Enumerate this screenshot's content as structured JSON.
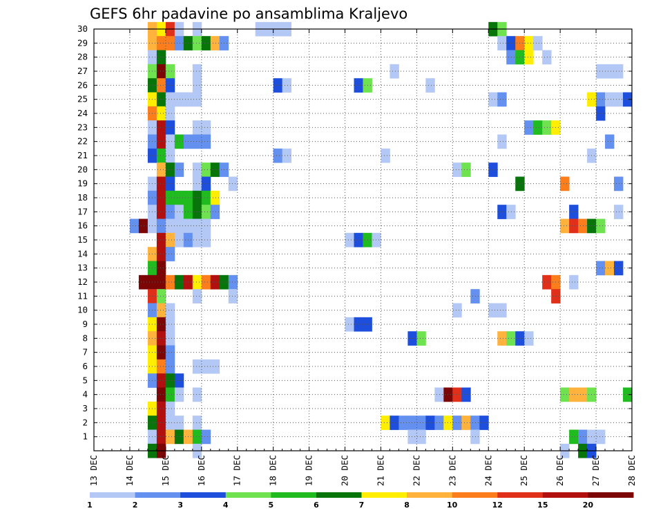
{
  "chart_data": {
    "type": "heatmap",
    "title": "GEFS 6hr padavine po ansamblima Kraljevo",
    "xlabel": "",
    "ylabel": "",
    "x_tick_labels": [
      "13 DEC",
      "14 DEC",
      "15 DEC",
      "16 DEC",
      "17 DEC",
      "18 DEC",
      "19 DEC",
      "20 DEC",
      "21 DEC",
      "22 DEC",
      "23 DEC",
      "24 DEC",
      "25 DEC",
      "26 DEC",
      "27 DEC",
      "28 DEC"
    ],
    "y_tick_labels": [
      "1",
      "2",
      "3",
      "4",
      "5",
      "6",
      "7",
      "8",
      "9",
      "10",
      "11",
      "12",
      "13",
      "14",
      "15",
      "16",
      "17",
      "18",
      "19",
      "20",
      "21",
      "22",
      "23",
      "24",
      "25",
      "26",
      "27",
      "28",
      "29",
      "30"
    ],
    "xlim_days": [
      13,
      28
    ],
    "ylim_members": [
      0,
      30
    ],
    "time_step_hours": 6,
    "grid": "dotted",
    "legend": {
      "placement": "bottom",
      "labels": [
        "1",
        "2",
        "3",
        "4",
        "5",
        "6",
        "7",
        "8",
        "10",
        "12",
        "15",
        "20"
      ],
      "colors": [
        "#b4c8f5",
        "#6491ef",
        "#1e4fdc",
        "#6ee34f",
        "#1fbb1f",
        "#08750a",
        "#ffee00",
        "#ffb23c",
        "#fb7d1c",
        "#e1301a",
        "#b20f0f",
        "#7c0606"
      ]
    },
    "cells": [
      [
        30,
        14.75,
        7
      ],
      [
        30,
        14.5,
        8
      ],
      [
        30,
        15.0,
        10
      ],
      [
        30,
        15.25,
        1
      ],
      [
        30,
        15.75,
        1
      ],
      [
        30,
        17.5,
        1
      ],
      [
        30,
        17.75,
        1
      ],
      [
        30,
        18.0,
        1
      ],
      [
        30,
        18.25,
        1
      ],
      [
        30,
        24.0,
        6
      ],
      [
        30,
        24.25,
        4
      ],
      [
        29,
        14.5,
        8
      ],
      [
        29,
        14.75,
        9
      ],
      [
        29,
        15.0,
        9
      ],
      [
        29,
        15.25,
        2
      ],
      [
        29,
        15.5,
        6
      ],
      [
        29,
        15.75,
        4
      ],
      [
        29,
        16.0,
        6
      ],
      [
        29,
        16.25,
        8
      ],
      [
        29,
        16.5,
        2
      ],
      [
        29,
        24.25,
        1
      ],
      [
        29,
        24.5,
        3
      ],
      [
        29,
        24.75,
        9
      ],
      [
        29,
        25.0,
        7
      ],
      [
        29,
        25.25,
        1
      ],
      [
        28,
        14.5,
        1
      ],
      [
        28,
        14.75,
        6
      ],
      [
        28,
        24.5,
        2
      ],
      [
        28,
        24.75,
        5
      ],
      [
        28,
        25.0,
        7
      ],
      [
        28,
        25.5,
        1
      ],
      [
        27,
        14.5,
        4
      ],
      [
        27,
        14.75,
        12
      ],
      [
        27,
        15.0,
        4
      ],
      [
        27,
        15.75,
        1
      ],
      [
        27,
        21.25,
        1
      ],
      [
        27,
        27.0,
        1
      ],
      [
        27,
        27.25,
        1
      ],
      [
        27,
        27.5,
        1
      ],
      [
        26,
        14.5,
        6
      ],
      [
        26,
        14.75,
        9
      ],
      [
        26,
        15.0,
        3
      ],
      [
        26,
        15.75,
        1
      ],
      [
        26,
        18.0,
        3
      ],
      [
        26,
        18.25,
        1
      ],
      [
        26,
        20.25,
        3
      ],
      [
        26,
        20.5,
        4
      ],
      [
        26,
        22.25,
        1
      ],
      [
        25,
        14.5,
        7
      ],
      [
        25,
        14.75,
        6
      ],
      [
        25,
        15.0,
        1
      ],
      [
        25,
        15.25,
        1
      ],
      [
        25,
        15.5,
        1
      ],
      [
        25,
        15.75,
        1
      ],
      [
        25,
        24.0,
        1
      ],
      [
        25,
        24.25,
        2
      ],
      [
        25,
        26.75,
        7
      ],
      [
        25,
        27.0,
        2
      ],
      [
        25,
        27.25,
        1
      ],
      [
        25,
        27.5,
        1
      ],
      [
        25,
        27.75,
        3
      ],
      [
        24,
        14.5,
        9
      ],
      [
        24,
        14.75,
        7
      ],
      [
        24,
        15.0,
        1
      ],
      [
        24,
        27.0,
        3
      ],
      [
        23,
        14.5,
        1
      ],
      [
        23,
        14.75,
        11
      ],
      [
        23,
        15.0,
        3
      ],
      [
        23,
        15.75,
        1
      ],
      [
        23,
        16.0,
        1
      ],
      [
        23,
        25.0,
        2
      ],
      [
        23,
        25.25,
        5
      ],
      [
        23,
        25.5,
        4
      ],
      [
        23,
        25.75,
        7
      ],
      [
        22,
        14.5,
        2
      ],
      [
        22,
        14.75,
        11
      ],
      [
        22,
        15.0,
        1
      ],
      [
        22,
        15.25,
        5
      ],
      [
        22,
        15.5,
        2
      ],
      [
        22,
        15.75,
        2
      ],
      [
        22,
        16.0,
        2
      ],
      [
        22,
        24.25,
        1
      ],
      [
        22,
        27.25,
        2
      ],
      [
        21,
        14.5,
        3
      ],
      [
        21,
        14.75,
        5
      ],
      [
        21,
        15.0,
        1
      ],
      [
        21,
        18.0,
        2
      ],
      [
        21,
        18.25,
        1
      ],
      [
        21,
        21.0,
        1
      ],
      [
        21,
        26.75,
        1
      ],
      [
        20,
        14.75,
        8
      ],
      [
        20,
        15.0,
        6
      ],
      [
        20,
        15.25,
        2
      ],
      [
        20,
        15.75,
        1
      ],
      [
        20,
        16.0,
        4
      ],
      [
        20,
        16.25,
        6
      ],
      [
        20,
        16.5,
        2
      ],
      [
        20,
        23.0,
        1
      ],
      [
        20,
        23.25,
        4
      ],
      [
        20,
        24.0,
        3
      ],
      [
        19,
        14.5,
        1
      ],
      [
        19,
        14.75,
        11
      ],
      [
        19,
        15.0,
        3
      ],
      [
        19,
        15.75,
        1
      ],
      [
        19,
        16.0,
        3
      ],
      [
        19,
        16.75,
        1
      ],
      [
        19,
        24.75,
        6
      ],
      [
        19,
        26.0,
        9
      ],
      [
        19,
        27.5,
        2
      ],
      [
        18,
        14.5,
        2
      ],
      [
        18,
        14.75,
        11
      ],
      [
        18,
        15.0,
        5
      ],
      [
        18,
        15.25,
        5
      ],
      [
        18,
        15.5,
        5
      ],
      [
        18,
        15.75,
        6
      ],
      [
        18,
        16.0,
        5
      ],
      [
        18,
        16.25,
        7
      ],
      [
        17,
        14.5,
        1
      ],
      [
        17,
        14.75,
        11
      ],
      [
        17,
        15.0,
        2
      ],
      [
        17,
        15.25,
        1
      ],
      [
        17,
        15.5,
        5
      ],
      [
        17,
        15.75,
        6
      ],
      [
        17,
        16.0,
        4
      ],
      [
        17,
        16.25,
        2
      ],
      [
        17,
        24.25,
        3
      ],
      [
        17,
        24.5,
        1
      ],
      [
        17,
        26.25,
        3
      ],
      [
        17,
        27.5,
        1
      ],
      [
        16,
        14.0,
        2
      ],
      [
        16,
        14.25,
        12
      ],
      [
        16,
        14.5,
        1
      ],
      [
        16,
        14.75,
        2
      ],
      [
        16,
        15.0,
        1
      ],
      [
        16,
        15.25,
        1
      ],
      [
        16,
        15.5,
        1
      ],
      [
        16,
        15.75,
        1
      ],
      [
        16,
        16.0,
        1
      ],
      [
        16,
        26.0,
        8
      ],
      [
        16,
        26.25,
        10
      ],
      [
        16,
        26.5,
        9
      ],
      [
        16,
        26.75,
        6
      ],
      [
        16,
        27.0,
        4
      ],
      [
        15,
        14.75,
        11
      ],
      [
        15,
        15.0,
        8
      ],
      [
        15,
        15.25,
        1
      ],
      [
        15,
        15.5,
        2
      ],
      [
        15,
        15.75,
        1
      ],
      [
        15,
        16.0,
        1
      ],
      [
        15,
        20.0,
        1
      ],
      [
        15,
        20.25,
        3
      ],
      [
        15,
        20.5,
        5
      ],
      [
        15,
        20.75,
        1
      ],
      [
        14,
        14.5,
        8
      ],
      [
        14,
        14.75,
        11
      ],
      [
        14,
        15.0,
        2
      ],
      [
        13,
        14.5,
        5
      ],
      [
        13,
        14.75,
        12
      ],
      [
        13,
        27.0,
        2
      ],
      [
        13,
        27.25,
        8
      ],
      [
        13,
        27.5,
        3
      ],
      [
        12,
        14.25,
        12
      ],
      [
        12,
        14.5,
        12
      ],
      [
        12,
        14.75,
        12
      ],
      [
        12,
        15.0,
        9
      ],
      [
        12,
        15.25,
        6
      ],
      [
        12,
        15.5,
        11
      ],
      [
        12,
        15.75,
        7
      ],
      [
        12,
        16.0,
        9
      ],
      [
        12,
        16.25,
        11
      ],
      [
        12,
        16.5,
        6
      ],
      [
        12,
        16.75,
        2
      ],
      [
        12,
        25.5,
        10
      ],
      [
        12,
        25.75,
        9
      ],
      [
        12,
        26.25,
        1
      ],
      [
        11,
        14.5,
        10
      ],
      [
        11,
        14.75,
        4
      ],
      [
        11,
        15.75,
        1
      ],
      [
        11,
        16.75,
        1
      ],
      [
        11,
        23.5,
        2
      ],
      [
        11,
        25.75,
        10
      ],
      [
        10,
        14.5,
        2
      ],
      [
        10,
        14.75,
        8
      ],
      [
        10,
        15.0,
        1
      ],
      [
        10,
        23.0,
        1
      ],
      [
        10,
        24.0,
        1
      ],
      [
        10,
        24.25,
        1
      ],
      [
        9,
        14.5,
        7
      ],
      [
        9,
        14.75,
        12
      ],
      [
        9,
        15.0,
        1
      ],
      [
        9,
        20.0,
        1
      ],
      [
        9,
        20.25,
        3
      ],
      [
        9,
        20.5,
        3
      ],
      [
        8,
        14.5,
        8
      ],
      [
        8,
        14.75,
        11
      ],
      [
        8,
        15.0,
        1
      ],
      [
        8,
        21.75,
        3
      ],
      [
        8,
        22.0,
        4
      ],
      [
        8,
        24.25,
        8
      ],
      [
        8,
        24.5,
        4
      ],
      [
        8,
        24.75,
        3
      ],
      [
        8,
        25.0,
        1
      ],
      [
        7,
        14.5,
        7
      ],
      [
        7,
        14.75,
        12
      ],
      [
        7,
        15.0,
        2
      ],
      [
        6,
        14.5,
        7
      ],
      [
        6,
        14.75,
        9
      ],
      [
        6,
        15.0,
        2
      ],
      [
        6,
        15.75,
        1
      ],
      [
        6,
        16.0,
        1
      ],
      [
        6,
        16.25,
        1
      ],
      [
        5,
        14.5,
        2
      ],
      [
        5,
        14.75,
        11
      ],
      [
        5,
        15.0,
        6
      ],
      [
        5,
        15.25,
        3
      ],
      [
        4,
        14.75,
        12
      ],
      [
        4,
        15.0,
        5
      ],
      [
        4,
        15.25,
        1
      ],
      [
        4,
        15.75,
        1
      ],
      [
        4,
        22.5,
        1
      ],
      [
        4,
        22.75,
        12
      ],
      [
        4,
        23.0,
        10
      ],
      [
        4,
        23.25,
        3
      ],
      [
        4,
        26.0,
        4
      ],
      [
        4,
        26.25,
        8
      ],
      [
        4,
        26.5,
        8
      ],
      [
        4,
        26.75,
        4
      ],
      [
        4,
        27.75,
        5
      ],
      [
        3,
        14.5,
        7
      ],
      [
        3,
        14.75,
        11
      ],
      [
        3,
        15.0,
        1
      ],
      [
        2,
        14.5,
        6
      ],
      [
        2,
        14.75,
        11
      ],
      [
        2,
        15.0,
        1
      ],
      [
        2,
        15.25,
        1
      ],
      [
        2,
        15.75,
        1
      ],
      [
        2,
        21.0,
        7
      ],
      [
        2,
        21.25,
        3
      ],
      [
        2,
        21.5,
        2
      ],
      [
        2,
        21.75,
        2
      ],
      [
        2,
        22.0,
        2
      ],
      [
        2,
        22.25,
        3
      ],
      [
        2,
        22.5,
        2
      ],
      [
        2,
        22.75,
        7
      ],
      [
        2,
        23.0,
        2
      ],
      [
        2,
        23.25,
        8
      ],
      [
        2,
        23.5,
        2
      ],
      [
        2,
        23.75,
        3
      ],
      [
        1,
        14.5,
        1
      ],
      [
        1,
        14.75,
        11
      ],
      [
        1,
        15.0,
        8
      ],
      [
        1,
        15.25,
        6
      ],
      [
        1,
        15.5,
        8
      ],
      [
        1,
        15.75,
        5
      ],
      [
        1,
        16.0,
        2
      ],
      [
        1,
        21.75,
        1
      ],
      [
        1,
        22.0,
        1
      ],
      [
        1,
        23.5,
        1
      ],
      [
        1,
        26.25,
        5
      ],
      [
        1,
        26.5,
        2
      ],
      [
        1,
        26.75,
        1
      ],
      [
        1,
        27.0,
        1
      ],
      [
        0,
        14.5,
        6
      ],
      [
        0,
        14.75,
        12
      ],
      [
        0,
        15.75,
        1
      ],
      [
        0,
        26.0,
        1
      ],
      [
        0,
        26.5,
        6
      ],
      [
        0,
        26.75,
        3
      ]
    ]
  }
}
